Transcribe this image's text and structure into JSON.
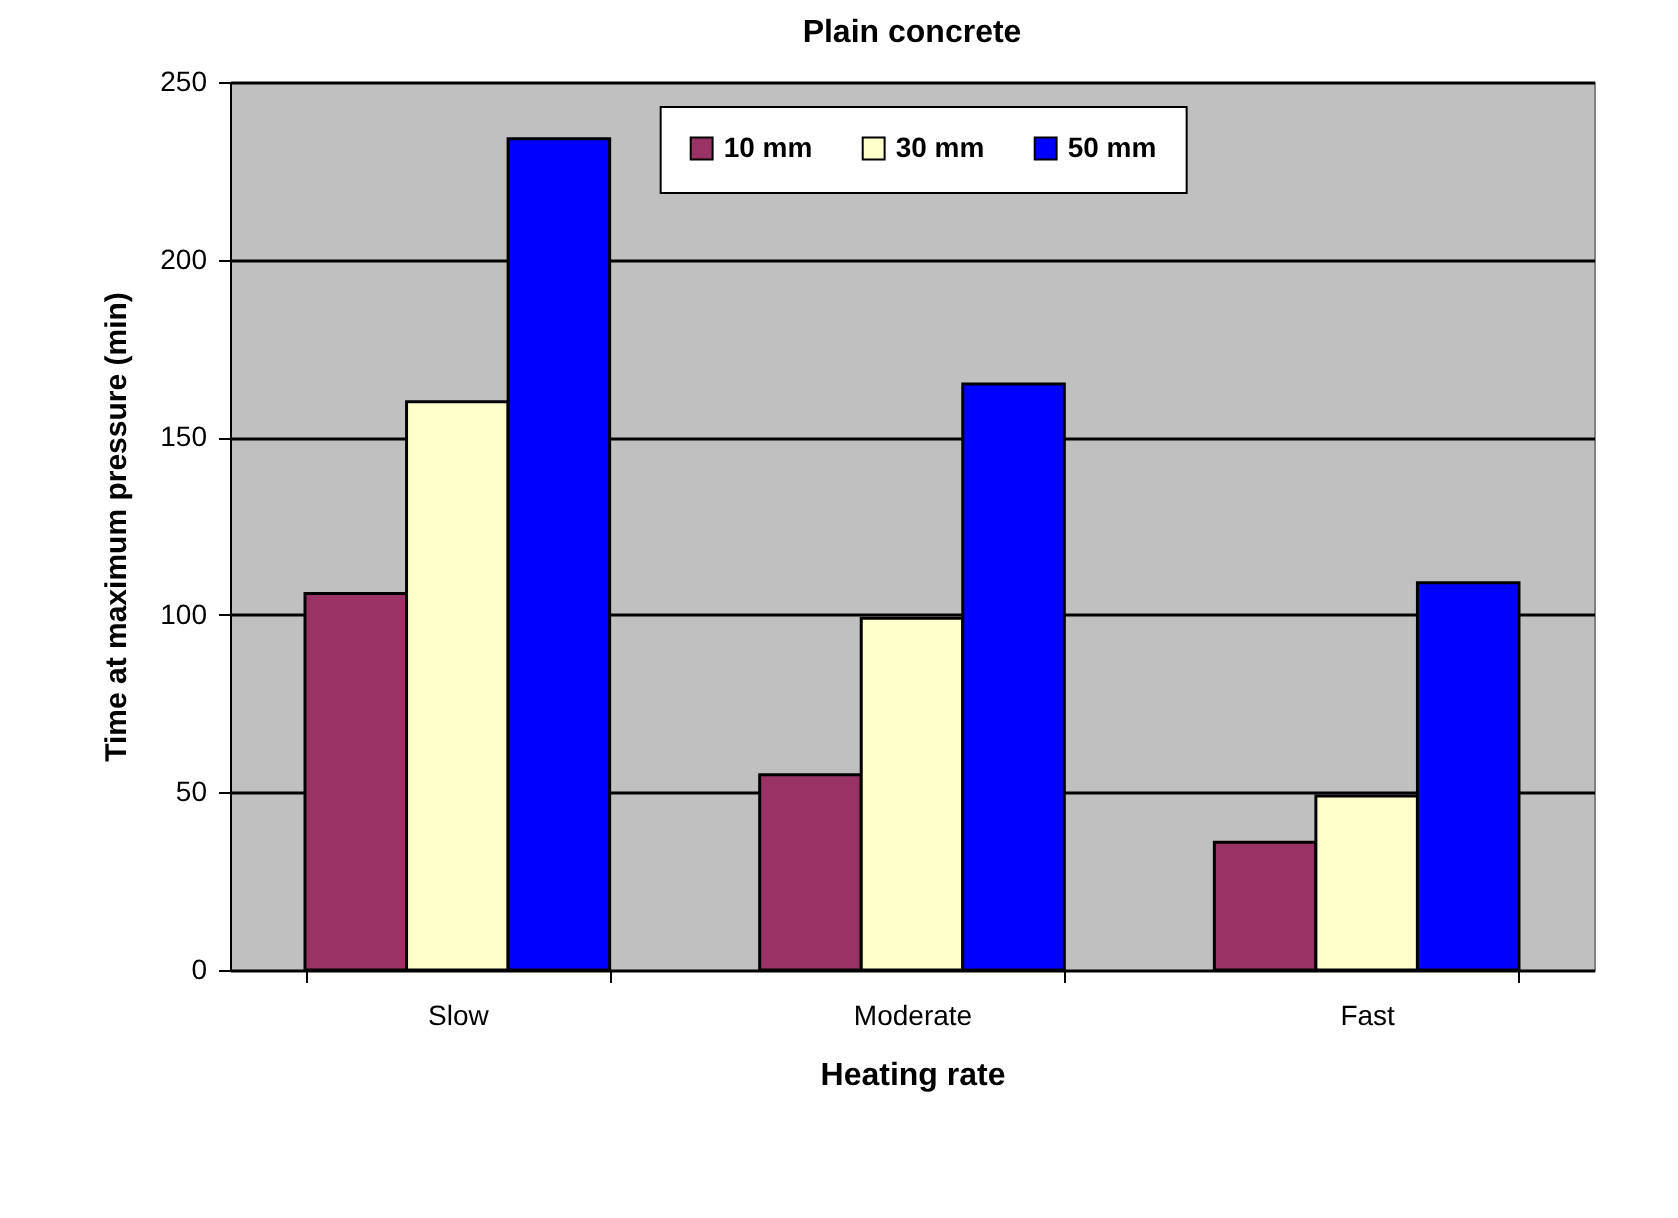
{
  "chart_data": {
    "type": "bar",
    "title": "Plain concrete",
    "xlabel": "Heating rate",
    "ylabel": "Time at maximum pressure (min)",
    "categories": [
      "Slow",
      "Moderate",
      "Fast"
    ],
    "series": [
      {
        "name": "10 mm",
        "color": "#993366",
        "values": [
          106,
          55,
          36
        ]
      },
      {
        "name": "30 mm",
        "color": "#ffffcc",
        "values": [
          160,
          99,
          49
        ]
      },
      {
        "name": "50 mm",
        "color": "#0000ff",
        "values": [
          234,
          165,
          109
        ]
      }
    ],
    "ylim": [
      0,
      250
    ],
    "yticks": [
      0,
      50,
      100,
      150,
      200,
      250
    ],
    "grid": "y",
    "legend": "top"
  }
}
